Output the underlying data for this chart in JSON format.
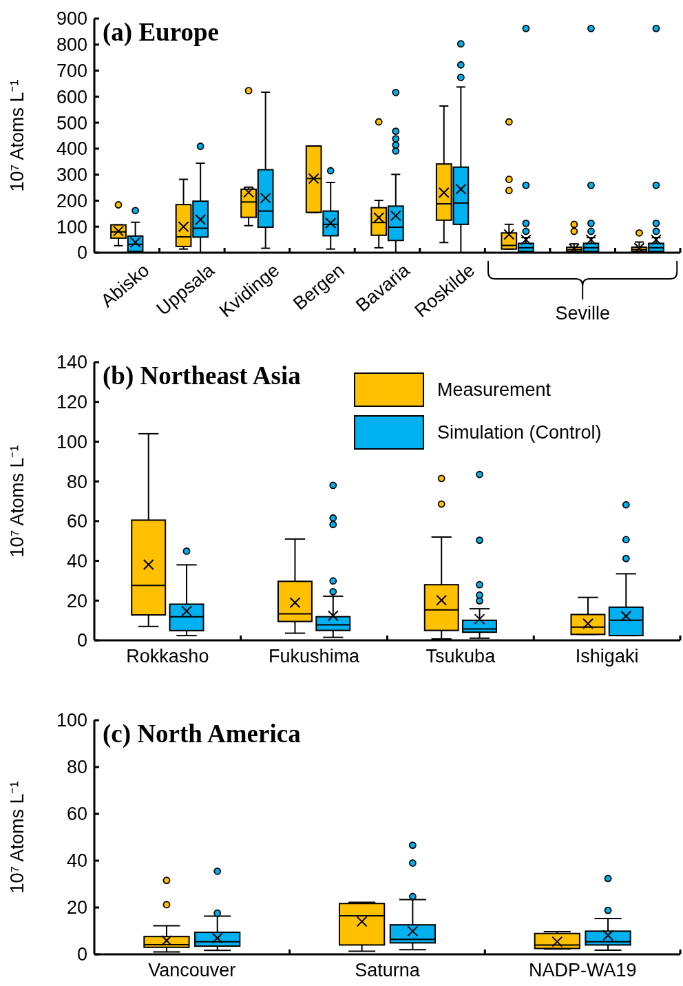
{
  "chart_data": [
    {
      "type": "box",
      "title": "(a) Europe",
      "ylabel": "10⁷ Atoms L⁻¹",
      "categories": [
        "Abisko",
        "Uppsala",
        "Kvidinge",
        "Bergen",
        "Bavaria",
        "Roskilde",
        null,
        null,
        null
      ],
      "annotations": [
        "Seville"
      ],
      "ylim": [
        0,
        900
      ],
      "yticks": [
        0,
        100,
        200,
        300,
        400,
        500,
        600,
        700,
        800,
        900
      ],
      "series": [
        {
          "color": "#ffc000",
          "boxes": [
            {
              "low": 27,
              "q1": 56,
              "median": 80,
              "q3": 107,
              "high": 107,
              "mean": 83,
              "outliers": [
                184
              ]
            },
            {
              "low": 14,
              "q1": 24,
              "median": 61,
              "q3": 185,
              "high": 282,
              "mean": 100
            },
            {
              "low": 104,
              "q1": 136,
              "median": 195,
              "q3": 244,
              "high": 252,
              "mean": 232,
              "outliers": [
                623
              ]
            },
            {
              "low": 155,
              "q1": 155,
              "median": 285,
              "q3": 410,
              "high": 410,
              "mean": 285
            },
            {
              "low": 19,
              "q1": 67,
              "median": 116,
              "q3": 173,
              "high": 201,
              "mean": 135,
              "outliers": [
                503
              ]
            },
            {
              "low": 39,
              "q1": 125,
              "median": 188,
              "q3": 341,
              "high": 564,
              "mean": 231
            },
            {
              "low": 14,
              "q1": 14,
              "median": 28,
              "q3": 76,
              "high": 109,
              "mean": 70,
              "outliers": [
                239,
                282,
                503
              ]
            },
            {
              "low": 0,
              "q1": 5,
              "median": 12,
              "q3": 21,
              "high": 34,
              "mean": 15,
              "outliers": [
                82,
                109
              ]
            },
            {
              "low": 0,
              "q1": 5,
              "median": 12,
              "q3": 21,
              "high": 41,
              "mean": 18,
              "outliers": [
                76
              ]
            }
          ]
        },
        {
          "color": "#00b0f0",
          "boxes": [
            {
              "low": 0,
              "q1": 5,
              "median": 32,
              "q3": 64,
              "high": 117,
              "mean": 40,
              "outliers": [
                162
              ]
            },
            {
              "low": 0,
              "q1": 60,
              "median": 94,
              "q3": 198,
              "high": 344,
              "mean": 127,
              "outliers": [
                409
              ]
            },
            {
              "low": 17,
              "q1": 98,
              "median": 160,
              "q3": 319,
              "high": 617,
              "mean": 210
            },
            {
              "low": 14,
              "q1": 65,
              "median": 109,
              "q3": 160,
              "high": 270,
              "mean": 114,
              "outliers": [
                315
              ]
            },
            {
              "low": 0,
              "q1": 47,
              "median": 98,
              "q3": 179,
              "high": 301,
              "mean": 142,
              "outliers": [
                391,
                414,
                438,
                467,
                616
              ]
            },
            {
              "low": 0,
              "q1": 109,
              "median": 191,
              "q3": 329,
              "high": 637,
              "mean": 244,
              "outliers": [
                674,
                722,
                803
              ]
            },
            {
              "low": 0,
              "q1": 5,
              "median": 19,
              "q3": 36,
              "high": 58,
              "mean": 50,
              "outliers": [
                82,
                113,
                259,
                862
              ]
            },
            {
              "low": 0,
              "q1": 5,
              "median": 19,
              "q3": 36,
              "high": 58,
              "mean": 50,
              "outliers": [
                82,
                113,
                259,
                862
              ]
            },
            {
              "low": 0,
              "q1": 5,
              "median": 19,
              "q3": 36,
              "high": 58,
              "mean": 50,
              "outliers": [
                82,
                113,
                259,
                862
              ]
            }
          ]
        }
      ]
    },
    {
      "type": "box",
      "title": "(b) Northeast Asia",
      "ylabel": "10⁷ Atoms L⁻¹",
      "categories": [
        "Rokkasho",
        "Fukushima",
        "Tsukuba",
        "Ishigaki"
      ],
      "ylim": [
        0,
        140
      ],
      "yticks": [
        0,
        20,
        40,
        60,
        80,
        100,
        120,
        140
      ],
      "legend": "top right",
      "series": [
        {
          "name": "Measurement",
          "color": "#ffc000",
          "boxes": [
            {
              "low": 7,
              "q1": 12.8,
              "median": 27.6,
              "q3": 60.5,
              "high": 104,
              "mean": 38.1
            },
            {
              "low": 3.6,
              "q1": 9.5,
              "median": 13.3,
              "q3": 29.7,
              "high": 51,
              "mean": 19
            },
            {
              "low": 0.7,
              "q1": 5,
              "median": 15.3,
              "q3": 28,
              "high": 52,
              "mean": 20.2,
              "outliers": [
                68.6,
                81.5
              ]
            },
            {
              "low": 3,
              "q1": 3,
              "median": 6.7,
              "q3": 13,
              "high": 21.6,
              "mean": 8.4
            }
          ]
        },
        {
          "name": "Simulation (Control)",
          "color": "#00b0f0",
          "boxes": [
            {
              "low": 2.4,
              "q1": 4.9,
              "median": 11.9,
              "q3": 18.2,
              "high": 38,
              "mean": 14.7,
              "outliers": [
                44.9
              ]
            },
            {
              "low": 1.5,
              "q1": 5,
              "median": 7.8,
              "q3": 11.9,
              "high": 22.2,
              "mean": 12.4,
              "outliers": [
                24.5,
                29.9,
                58.3,
                61.6,
                78
              ]
            },
            {
              "low": 1.1,
              "q1": 4.1,
              "median": 5.7,
              "q3": 10.1,
              "high": 15.9,
              "mean": 10.7,
              "outliers": [
                19.9,
                22.8,
                28,
                50.4,
                83.5
              ]
            },
            {
              "low": 2.4,
              "q1": 2.4,
              "median": 10.1,
              "q3": 16.7,
              "high": 33.5,
              "mean": 12.2,
              "outliers": [
                41.2,
                50.7,
                68.2
              ]
            }
          ]
        }
      ]
    },
    {
      "type": "box",
      "title": "(c) North America",
      "ylabel": "10⁷ Atoms L⁻¹",
      "categories": [
        "Vancouver",
        "Saturna",
        "NADP-WA19"
      ],
      "ylim": [
        0,
        100
      ],
      "yticks": [
        0,
        20,
        40,
        60,
        80,
        100
      ],
      "series": [
        {
          "color": "#ffc000",
          "boxes": [
            {
              "low": 1,
              "q1": 3,
              "median": 4.1,
              "q3": 7.6,
              "high": 12.2,
              "mean": 5.9,
              "outliers": [
                21.2,
                31.6
              ]
            },
            {
              "low": 1.3,
              "q1": 4,
              "median": 16.5,
              "q3": 21.7,
              "high": 22.2,
              "mean": 14
            },
            {
              "low": 2.3,
              "q1": 2.5,
              "median": 4,
              "q3": 8.9,
              "high": 9.7,
              "mean": 5.4
            }
          ]
        },
        {
          "color": "#00b0f0",
          "boxes": [
            {
              "low": 1.7,
              "q1": 3.5,
              "median": 5.4,
              "q3": 9.4,
              "high": 16.3,
              "mean": 6.9,
              "outliers": [
                17.6,
                35.5
              ]
            },
            {
              "low": 2,
              "q1": 4.9,
              "median": 6.4,
              "q3": 12.6,
              "high": 23.4,
              "mean": 9.9,
              "outliers": [
                24.7,
                39,
                46.6
              ]
            },
            {
              "low": 1.8,
              "q1": 4,
              "median": 5.4,
              "q3": 9.9,
              "high": 15.3,
              "mean": 8.1,
              "outliers": [
                18.8,
                32.4
              ]
            }
          ]
        }
      ]
    }
  ]
}
